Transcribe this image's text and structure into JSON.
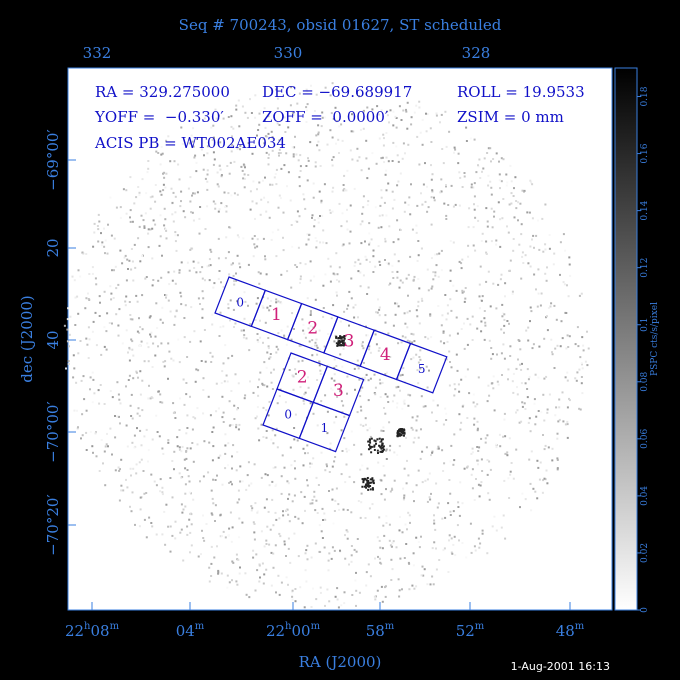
{
  "title": "Seq # 700243, obsid 01627, ST scheduled",
  "top_axis": {
    "ticks": [
      "332",
      "330",
      "328"
    ]
  },
  "bottom_axis": {
    "label": "RA (J2000)",
    "ticks": [
      [
        "22",
        "h",
        "08",
        "m"
      ],
      [
        "04",
        "m"
      ],
      [
        "22",
        "h",
        "00",
        "m"
      ],
      [
        "58",
        "m"
      ],
      [
        "52",
        "m"
      ],
      [
        "48",
        "m"
      ]
    ]
  },
  "left_axis": {
    "label": "dec (J2000)",
    "ticks": [
      "−69°00′",
      "20",
      "40",
      "−70°00′",
      "−70°20′"
    ]
  },
  "info": [
    "RA = 329.275000",
    "DEC = −69.689917",
    "ROLL = 19.9533",
    "YOFF =  −0.330′",
    "ZOFF =  0.0000′",
    "ZSIM = 0 mm",
    "ACIS PB = WT002AE034"
  ],
  "acis_s_chips": [
    "0",
    "1",
    "2",
    "3",
    "4",
    "5"
  ],
  "acis_i_chips": [
    "2",
    "3",
    "0",
    "1"
  ],
  "colorbar": {
    "label": "PSPC cts/s/pixel",
    "lim": [
      0,
      0.19
    ],
    "ticks": [
      0,
      0.02,
      0.04,
      0.06,
      0.08,
      0.1,
      0.12,
      0.14,
      0.16,
      0.18
    ]
  },
  "footer": "1-Aug-2001 16:13"
}
